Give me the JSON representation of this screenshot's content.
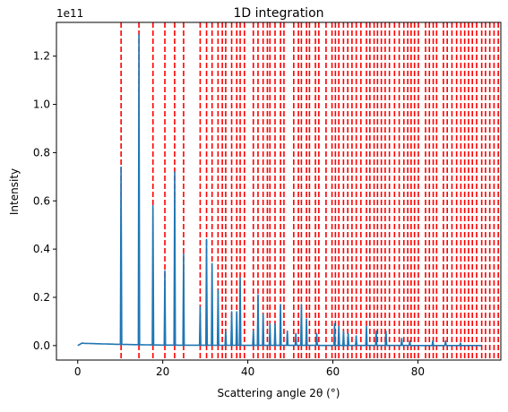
{
  "chart_data": {
    "type": "line",
    "title": "1D integration",
    "xlabel": "Scattering angle 2θ (°)",
    "ylabel": "Intensity",
    "y_offset_text": "1e11",
    "xlim": [
      -5,
      99.5
    ],
    "ylim": [
      -0.06,
      1.34
    ],
    "x_ticks": [
      0,
      20,
      40,
      60,
      80
    ],
    "x_tick_labels": [
      "0",
      "20",
      "40",
      "60",
      "80"
    ],
    "y_ticks": [
      0.0,
      0.2,
      0.4,
      0.6,
      0.8,
      1.0,
      1.2
    ],
    "y_tick_labels": [
      "0.0",
      "0.2",
      "0.4",
      "0.6",
      "0.8",
      "1.0",
      "1.2"
    ],
    "grid": false,
    "colors": {
      "line": "#1f77b4",
      "reference": "#ff0000",
      "axes": "#000000"
    },
    "series": [
      {
        "style": "line",
        "baseline": [
          [
            0,
            0.0
          ],
          [
            1,
            0.01
          ],
          [
            2,
            0.009
          ],
          [
            10,
            0.005
          ],
          [
            20,
            0.002
          ],
          [
            40,
            0.001
          ],
          [
            70,
            0.0005
          ],
          [
            95,
            0.0
          ]
        ],
        "peaks": [
          [
            10.2,
            0.74
          ],
          [
            14.4,
            1.29
          ],
          [
            17.7,
            0.58
          ],
          [
            20.5,
            0.31
          ],
          [
            22.8,
            0.72
          ],
          [
            24.9,
            0.38
          ],
          [
            28.8,
            0.16
          ],
          [
            30.3,
            0.44
          ],
          [
            31.6,
            0.34
          ],
          [
            33.0,
            0.23
          ],
          [
            34.8,
            0.06
          ],
          [
            36.2,
            0.14
          ],
          [
            37.4,
            0.14
          ],
          [
            38.2,
            0.28
          ],
          [
            41.3,
            0.06
          ],
          [
            42.4,
            0.21
          ],
          [
            43.6,
            0.13
          ],
          [
            45.2,
            0.09
          ],
          [
            46.4,
            0.09
          ],
          [
            47.7,
            0.17
          ],
          [
            49.3,
            0.06
          ],
          [
            51.3,
            0.05
          ],
          [
            52.6,
            0.17
          ],
          [
            53.8,
            0.11
          ],
          [
            56.2,
            0.05
          ],
          [
            60.4,
            0.09
          ],
          [
            61.4,
            0.08
          ],
          [
            62.5,
            0.06
          ],
          [
            63.6,
            0.05
          ],
          [
            65.5,
            0.04
          ],
          [
            67.9,
            0.08
          ],
          [
            70.2,
            0.06
          ],
          [
            72.5,
            0.06
          ],
          [
            76.2,
            0.03
          ],
          [
            78.1,
            0.02
          ],
          [
            83.5,
            0.02
          ],
          [
            86.5,
            0.02
          ],
          [
            90.0,
            0.01
          ]
        ]
      },
      {
        "style": "reference-lines",
        "x": [
          10.2,
          14.4,
          17.7,
          20.5,
          22.8,
          24.9,
          28.8,
          30.3,
          31.6,
          33.0,
          34.0,
          34.8,
          36.2,
          37.4,
          38.2,
          39.2,
          41.3,
          42.4,
          43.6,
          44.6,
          45.2,
          46.4,
          47.7,
          48.5,
          50.8,
          51.9,
          52.6,
          53.8,
          54.5,
          55.9,
          56.7,
          58.4,
          59.8,
          60.6,
          61.4,
          62.5,
          63.5,
          64.5,
          65.5,
          66.6,
          67.9,
          68.7,
          69.7,
          70.5,
          71.4,
          72.3,
          73.3,
          74.5,
          75.6,
          76.7,
          77.6,
          78.4,
          79.2,
          80.1,
          81.8,
          82.7,
          83.6,
          84.4,
          86.0,
          86.9,
          88.0,
          89.1,
          90.1,
          91.0,
          91.9,
          92.8,
          93.8,
          95.0,
          95.9,
          96.9,
          97.9,
          98.9
        ]
      }
    ]
  }
}
